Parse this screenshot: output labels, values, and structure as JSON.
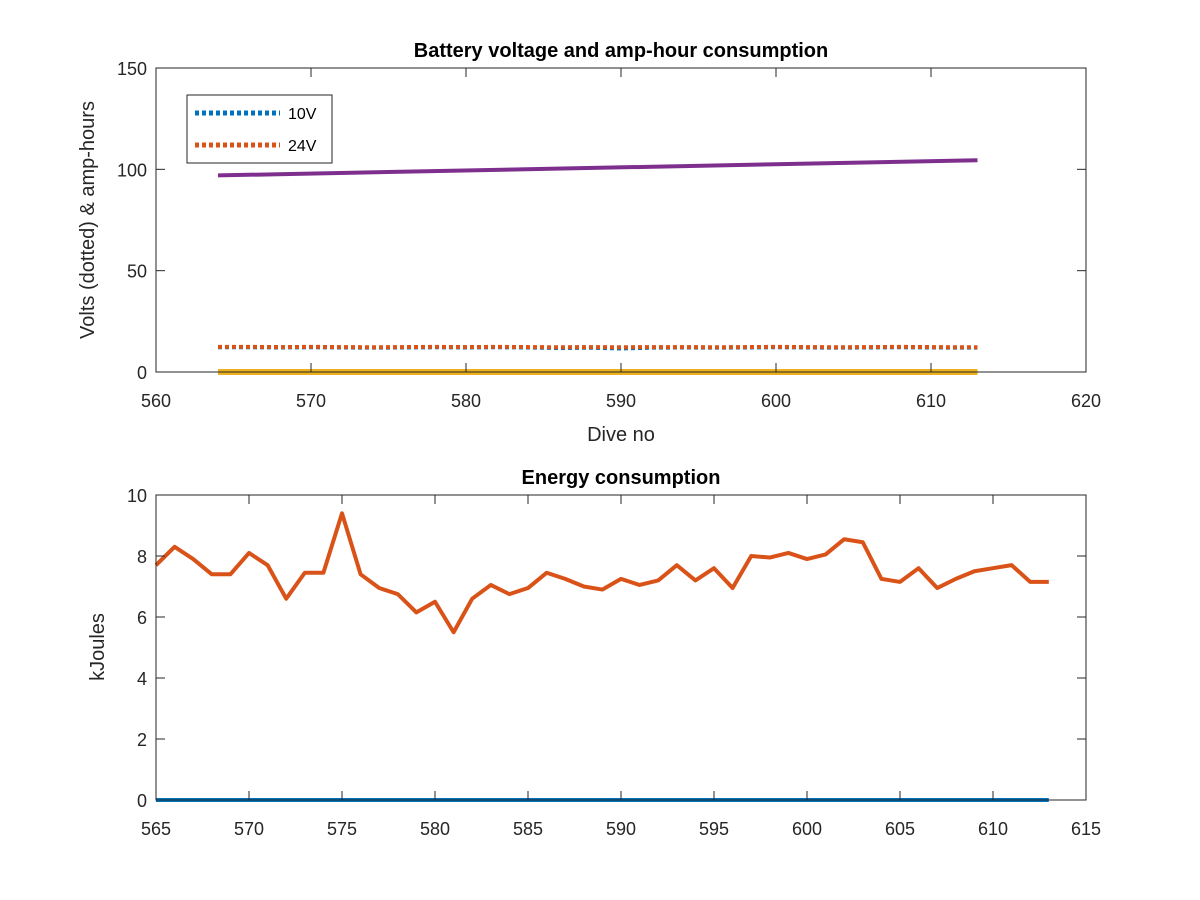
{
  "chart_data": [
    {
      "type": "line",
      "title": "Battery voltage and amp-hour consumption",
      "xlabel": "Dive no",
      "ylabel": "Volts (dotted) & amp-hours",
      "xlim": [
        560,
        620
      ],
      "ylim": [
        0,
        150
      ],
      "xticks": [
        560,
        570,
        580,
        590,
        600,
        610,
        620
      ],
      "yticks": [
        0,
        50,
        100,
        150
      ],
      "grid": false,
      "legend_position": "top-left",
      "series": [
        {
          "name": "10V",
          "style": "dotted",
          "color": "#0072BD",
          "x": [
            564,
            566,
            568,
            570,
            572,
            574,
            576,
            578,
            580,
            582,
            584,
            586,
            588,
            590,
            592,
            594,
            596,
            598,
            600,
            602,
            604,
            606,
            608,
            610,
            612,
            613
          ],
          "y": [
            12.2,
            12.2,
            12.1,
            12.2,
            12.1,
            12.0,
            12.1,
            12.2,
            12.1,
            12.2,
            12.1,
            11.8,
            12.0,
            11.6,
            12.0,
            12.1,
            12.0,
            12.1,
            12.2,
            12.1,
            12.0,
            12.1,
            12.2,
            12.1,
            12.0,
            12.0
          ]
        },
        {
          "name": "24V",
          "style": "dotted",
          "color": "#D95319",
          "x": [
            564,
            566,
            568,
            570,
            572,
            574,
            576,
            578,
            580,
            582,
            584,
            586,
            588,
            590,
            592,
            594,
            596,
            598,
            600,
            602,
            604,
            606,
            608,
            610,
            612,
            613
          ],
          "y": [
            12.4,
            12.4,
            12.3,
            12.4,
            12.3,
            12.2,
            12.3,
            12.4,
            12.3,
            12.4,
            12.3,
            12.2,
            12.3,
            12.2,
            12.3,
            12.3,
            12.2,
            12.3,
            12.4,
            12.3,
            12.2,
            12.3,
            12.4,
            12.3,
            12.2,
            12.2
          ]
        },
        {
          "name": "",
          "style": "solid",
          "color": "#7E2F8E",
          "x": [
            564,
            613
          ],
          "y": [
            97,
            104.5
          ]
        },
        {
          "name": "",
          "style": "solid",
          "color": "#EDB120",
          "x": [
            564,
            613
          ],
          "y": [
            0,
            0
          ]
        }
      ]
    },
    {
      "type": "line",
      "title": "Energy consumption",
      "xlabel": "",
      "ylabel": "kJoules",
      "xlim": [
        565,
        615
      ],
      "ylim": [
        0,
        10
      ],
      "xticks": [
        565,
        570,
        575,
        580,
        585,
        590,
        595,
        600,
        605,
        610,
        615
      ],
      "yticks": [
        0,
        2,
        4,
        6,
        8,
        10
      ],
      "grid": false,
      "series": [
        {
          "name": "",
          "style": "solid",
          "color": "#D95319",
          "x": [
            565,
            566,
            567,
            568,
            569,
            570,
            571,
            572,
            573,
            574,
            575,
            576,
            577,
            578,
            579,
            580,
            581,
            582,
            583,
            584,
            585,
            586,
            587,
            588,
            589,
            590,
            591,
            592,
            593,
            594,
            595,
            596,
            597,
            598,
            599,
            600,
            601,
            602,
            603,
            604,
            605,
            606,
            607,
            608,
            609,
            610,
            611,
            612,
            613
          ],
          "y": [
            7.7,
            8.3,
            7.9,
            7.4,
            7.4,
            8.1,
            7.7,
            6.6,
            7.45,
            7.45,
            9.4,
            7.4,
            6.95,
            6.75,
            6.15,
            6.5,
            5.5,
            6.6,
            7.05,
            6.75,
            6.95,
            7.45,
            7.25,
            7.0,
            6.9,
            7.25,
            7.05,
            7.2,
            7.7,
            7.2,
            7.6,
            6.95,
            8.0,
            7.95,
            8.1,
            7.9,
            8.05,
            8.55,
            8.45,
            7.25,
            7.15,
            7.6,
            6.95,
            7.25,
            7.5,
            7.6,
            7.7,
            7.15,
            7.15
          ]
        },
        {
          "name": "",
          "style": "solid",
          "color": "#0072BD",
          "x": [
            565,
            613
          ],
          "y": [
            0,
            0
          ]
        }
      ]
    }
  ]
}
